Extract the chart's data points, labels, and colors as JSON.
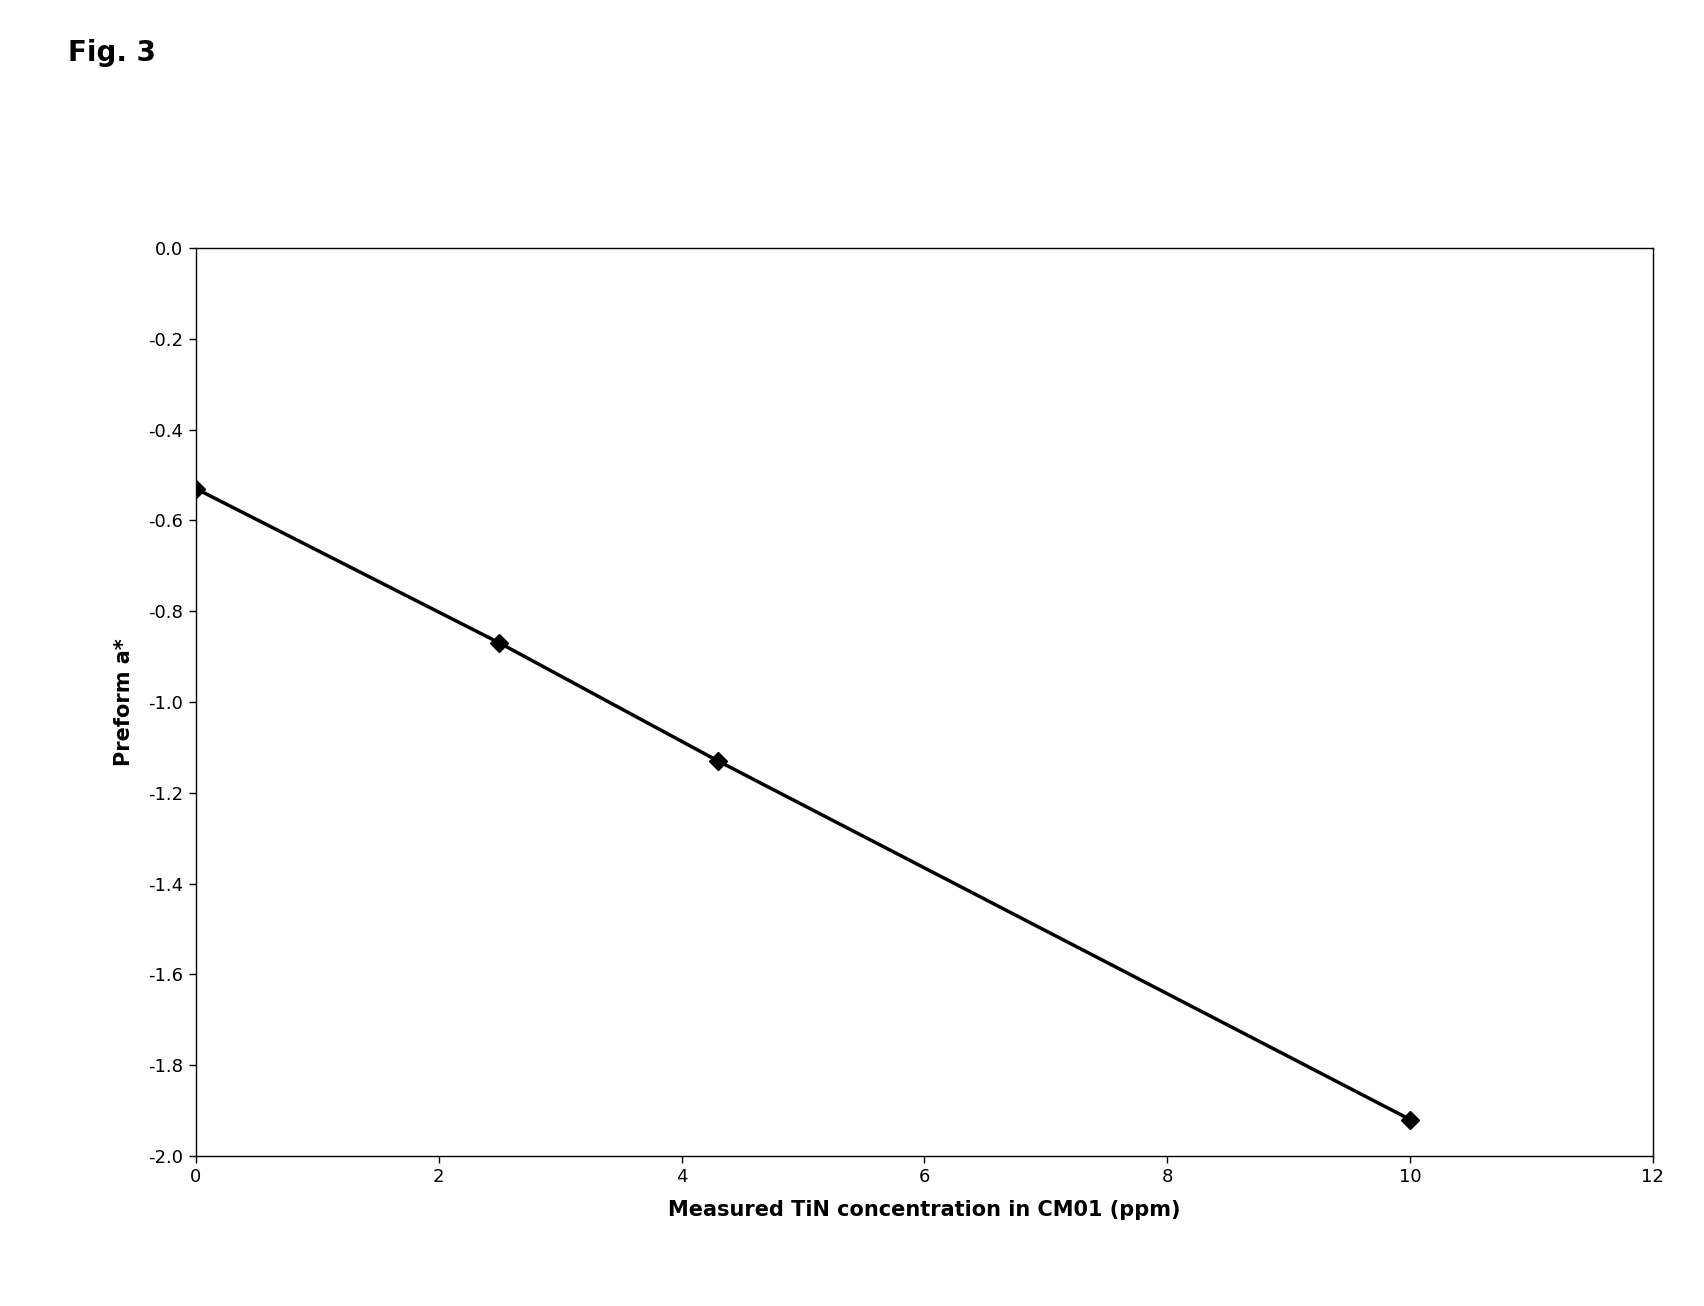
{
  "x_data": [
    0.0,
    2.5,
    4.3,
    10.0
  ],
  "y_data": [
    -0.53,
    -0.87,
    -1.13,
    -1.92
  ],
  "line_color": "#000000",
  "marker_color": "#000000",
  "marker_style": "D",
  "marker_size": 9,
  "line_width": 2.5,
  "xlabel": "Measured TiN concentration in CM01 (ppm)",
  "ylabel": "Preform a*",
  "xlim": [
    0,
    12
  ],
  "ylim": [
    -2.0,
    0.0
  ],
  "xticks": [
    0,
    2,
    4,
    6,
    8,
    10,
    12
  ],
  "yticks": [
    0.0,
    -0.2,
    -0.4,
    -0.6,
    -0.8,
    -1.0,
    -1.2,
    -1.4,
    -1.6,
    -1.8,
    -2.0
  ],
  "fig_label": "Fig. 3",
  "background_color": "#ffffff",
  "xlabel_fontsize": 15,
  "ylabel_fontsize": 15,
  "tick_fontsize": 13,
  "fig_label_fontsize": 20
}
